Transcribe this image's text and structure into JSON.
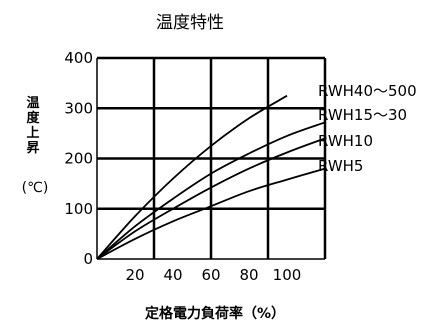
{
  "chart_data": {
    "type": "line",
    "title": "温度特性",
    "xlabel": "定格電力負荷率（%）",
    "ylabel": "温度上昇",
    "yunit": "(℃)",
    "xlim": [
      0,
      120
    ],
    "ylim": [
      0,
      400
    ],
    "x_ticks": [
      20,
      40,
      60,
      80,
      100
    ],
    "y_ticks": [
      0,
      100,
      200,
      300,
      400
    ],
    "grid": true,
    "series": [
      {
        "name": "RWH40～500",
        "x": [
          0,
          20,
          40,
          60,
          80,
          100
        ],
        "y": [
          0,
          85,
          160,
          225,
          280,
          325
        ]
      },
      {
        "name": "RWH15～30",
        "x": [
          0,
          20,
          40,
          60,
          80,
          100,
          120
        ],
        "y": [
          0,
          65,
          120,
          170,
          210,
          245,
          272
        ]
      },
      {
        "name": "RWH10",
        "x": [
          0,
          20,
          40,
          60,
          80,
          100,
          120
        ],
        "y": [
          0,
          55,
          100,
          142,
          180,
          212,
          240
        ]
      },
      {
        "name": "RWH5",
        "x": [
          0,
          20,
          40,
          60,
          80,
          100,
          120
        ],
        "y": [
          0,
          40,
          75,
          105,
          135,
          158,
          180
        ]
      }
    ]
  }
}
